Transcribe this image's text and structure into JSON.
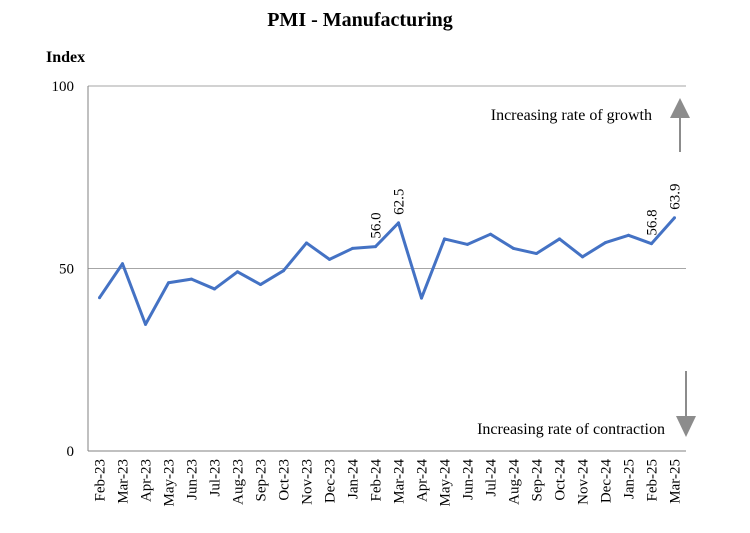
{
  "chart_data": {
    "type": "line",
    "title": "PMI - Manufacturing",
    "ylabel": "Index",
    "xlabel": "",
    "ylim": [
      0,
      100
    ],
    "yticks": [
      "0",
      "50",
      "100"
    ],
    "grid": "horizontal",
    "categories": [
      "Feb-23",
      "Mar-23",
      "Apr-23",
      "May-23",
      "Jun-23",
      "Jul-23",
      "Aug-23",
      "Sep-23",
      "Oct-23",
      "Nov-23",
      "Dec-23",
      "Jan-24",
      "Feb-24",
      "Mar-24",
      "Apr-24",
      "May-24",
      "Jun-24",
      "Jul-24",
      "Aug-24",
      "Sep-24",
      "Oct-24",
      "Nov-24",
      "Dec-24",
      "Jan-25",
      "Feb-25",
      "Mar-25"
    ],
    "series": [
      {
        "name": "PMI - Manufacturing",
        "color": "#4472C4",
        "values": [
          42.0,
          51.3,
          34.7,
          46.1,
          47.1,
          44.4,
          49.1,
          45.6,
          49.4,
          57.0,
          52.5,
          55.5,
          56.0,
          62.5,
          41.9,
          58.1,
          56.6,
          59.4,
          55.5,
          54.1,
          58.1,
          53.2,
          57.1,
          59.1,
          56.8,
          63.9
        ]
      }
    ],
    "data_labels": [
      {
        "category": "Feb-24",
        "text": "56.0"
      },
      {
        "category": "Mar-24",
        "text": "62.5"
      },
      {
        "category": "Feb-25",
        "text": "56.8"
      },
      {
        "category": "Mar-25",
        "text": "63.9"
      }
    ],
    "annotations": {
      "growth": "Increasing rate of growth",
      "contraction": "Increasing rate of contraction"
    }
  },
  "colors": {
    "line": "#4472C4",
    "arrow": "#8c8c8c",
    "grid": "#a6a6a6",
    "axis": "#808080"
  }
}
